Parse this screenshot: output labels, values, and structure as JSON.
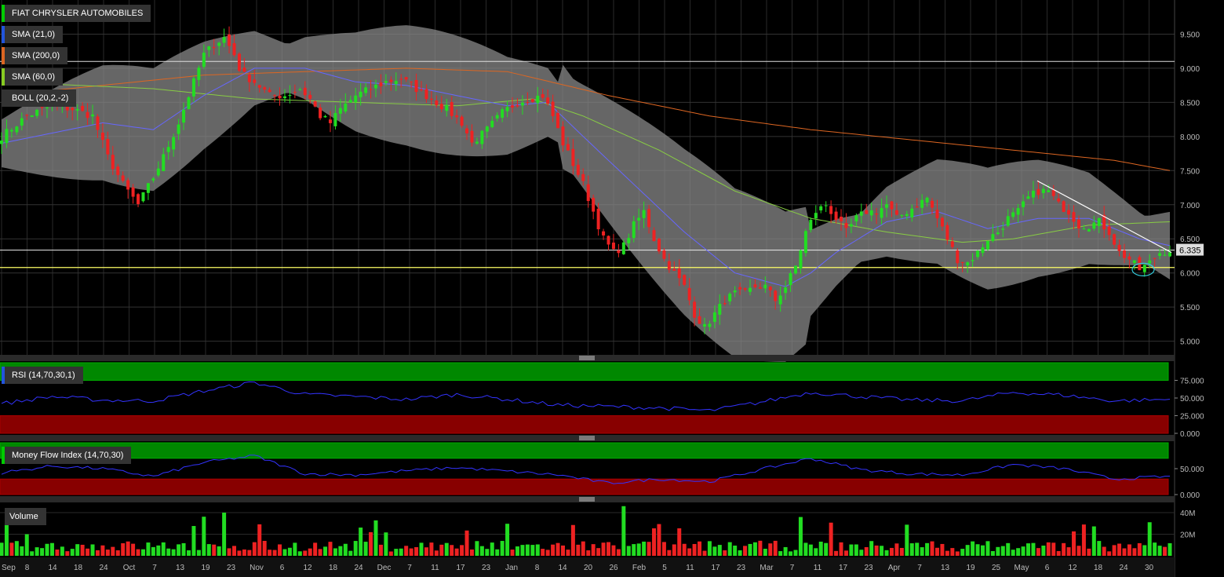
{
  "legends": {
    "instrument": {
      "label": "FIAT CHRYSLER AUTOMOBILES",
      "color": "#22cc22"
    },
    "sma21": {
      "label": "SMA (21,0)",
      "color": "#2255dd"
    },
    "sma200": {
      "label": "SMA (200,0)",
      "color": "#dd6622"
    },
    "sma60": {
      "label": "SMA (60,0)",
      "color": "#88cc22"
    },
    "boll": {
      "label": "BOLL (20,2,-2)",
      "color": "#333333"
    },
    "rsi": {
      "label": "RSI (14,70,30,1)",
      "color": "#2255dd"
    },
    "mfi": {
      "label": "Money Flow Index (14,70,30)",
      "color": "#22cc22"
    },
    "volume": {
      "label": "Volume",
      "color": "#444444"
    }
  },
  "last_price": "6.335",
  "colors": {
    "up": "#22dd22",
    "down": "#ee2222",
    "band": "#888888",
    "sma21": "#6666ff",
    "sma60": "#88cc44",
    "sma200": "#dd6622",
    "rsi_line": "#3333ff",
    "overbought": "#008800",
    "oversold": "#880000",
    "support": "#ffff66"
  },
  "chart_data": [
    {
      "type": "line",
      "title": "FIAT CHRYSLER AUTOMOBILES",
      "subtitle": "",
      "xlabel": "",
      "ylabel": "",
      "ylim": [
        4.8,
        10.0
      ],
      "yticks": [
        "5.000",
        "5.500",
        "6.000",
        "6.500",
        "7.000",
        "7.500",
        "8.000",
        "8.500",
        "9.000",
        "9.500"
      ],
      "x_labels": [
        "Sep",
        "8",
        "14",
        "18",
        "24",
        "Oct",
        "7",
        "13",
        "19",
        "23",
        "Nov",
        "6",
        "12",
        "18",
        "24",
        "Dec",
        "7",
        "11",
        "17",
        "23",
        "Jan",
        "8",
        "14",
        "20",
        "26",
        "Feb",
        "5",
        "11",
        "17",
        "23",
        "Mar",
        "7",
        "11",
        "17",
        "23",
        "Apr",
        "7",
        "13",
        "19",
        "25",
        "May",
        "6",
        "12",
        "18",
        "24",
        "30"
      ],
      "series": [
        {
          "name": "FIAT CHRYSLER AUTOMOBILES",
          "kind": "candlestick",
          "close_points": [
            [
              0,
              8.0
            ],
            [
              5,
              8.3
            ],
            [
              10,
              8.45
            ],
            [
              14,
              8.4
            ],
            [
              18,
              8.3
            ],
            [
              21,
              7.7
            ],
            [
              24,
              7.3
            ],
            [
              27,
              7.0
            ],
            [
              30,
              7.4
            ],
            [
              32,
              7.7
            ],
            [
              35,
              8.2
            ],
            [
              38,
              8.8
            ],
            [
              40,
              9.2
            ],
            [
              42,
              9.35
            ],
            [
              44,
              9.45
            ],
            [
              46,
              9.2
            ],
            [
              47,
              9.0
            ],
            [
              48,
              8.9
            ],
            [
              50,
              8.8
            ],
            [
              53,
              8.6
            ],
            [
              56,
              8.6
            ],
            [
              59,
              8.7
            ],
            [
              61,
              8.55
            ],
            [
              63,
              8.3
            ],
            [
              65,
              8.2
            ],
            [
              67,
              8.4
            ],
            [
              70,
              8.6
            ],
            [
              73,
              8.7
            ],
            [
              76,
              8.8
            ],
            [
              79,
              8.85
            ],
            [
              82,
              8.7
            ],
            [
              85,
              8.55
            ],
            [
              88,
              8.4
            ],
            [
              91,
              8.2
            ],
            [
              93,
              7.9
            ],
            [
              96,
              8.1
            ],
            [
              99,
              8.35
            ],
            [
              102,
              8.5
            ],
            [
              104,
              8.55
            ],
            [
              107,
              8.6
            ],
            [
              109,
              8.3
            ],
            [
              111,
              7.9
            ],
            [
              113,
              7.6
            ],
            [
              115,
              7.3
            ],
            [
              117,
              6.9
            ],
            [
              119,
              6.5
            ],
            [
              121,
              6.3
            ],
            [
              123,
              6.4
            ],
            [
              125,
              6.7
            ],
            [
              127,
              6.9
            ],
            [
              129,
              6.5
            ],
            [
              131,
              6.2
            ],
            [
              133,
              6.0
            ],
            [
              135,
              5.8
            ],
            [
              137,
              5.4
            ],
            [
              139,
              5.2
            ],
            [
              141,
              5.4
            ],
            [
              143,
              5.6
            ],
            [
              145,
              5.7
            ],
            [
              147,
              5.7
            ],
            [
              149,
              5.8
            ],
            [
              151,
              5.8
            ],
            [
              153,
              5.6
            ],
            [
              155,
              5.8
            ],
            [
              157,
              6.1
            ],
            [
              159,
              6.6
            ],
            [
              161,
              6.9
            ],
            [
              163,
              7.0
            ],
            [
              165,
              6.8
            ],
            [
              167,
              6.6
            ],
            [
              169,
              6.8
            ],
            [
              171,
              6.9
            ],
            [
              173,
              6.9
            ],
            [
              175,
              7.0
            ],
            [
              177,
              6.8
            ],
            [
              179,
              6.9
            ],
            [
              181,
              7.0
            ],
            [
              183,
              7.1
            ],
            [
              185,
              6.8
            ],
            [
              187,
              6.5
            ],
            [
              189,
              6.2
            ],
            [
              191,
              6.15
            ],
            [
              193,
              6.3
            ],
            [
              195,
              6.5
            ],
            [
              197,
              6.6
            ],
            [
              199,
              6.8
            ],
            [
              201,
              6.9
            ],
            [
              203,
              7.1
            ],
            [
              205,
              7.2
            ],
            [
              207,
              7.2
            ],
            [
              209,
              7.0
            ],
            [
              211,
              6.9
            ],
            [
              213,
              6.7
            ],
            [
              215,
              6.7
            ],
            [
              217,
              6.75
            ],
            [
              219,
              6.6
            ],
            [
              221,
              6.3
            ],
            [
              223,
              6.2
            ],
            [
              225,
              6.05
            ],
            [
              227,
              6.15
            ],
            [
              229,
              6.3
            ],
            [
              231,
              6.335
            ]
          ]
        },
        {
          "name": "SMA (21,0)",
          "points": [
            [
              0,
              7.9
            ],
            [
              20,
              8.2
            ],
            [
              30,
              8.1
            ],
            [
              40,
              8.6
            ],
            [
              50,
              9.0
            ],
            [
              60,
              9.0
            ],
            [
              70,
              8.8
            ],
            [
              80,
              8.75
            ],
            [
              90,
              8.6
            ],
            [
              100,
              8.45
            ],
            [
              108,
              8.5
            ],
            [
              115,
              8.0
            ],
            [
              125,
              7.3
            ],
            [
              135,
              6.6
            ],
            [
              145,
              6.0
            ],
            [
              155,
              5.8
            ],
            [
              160,
              6.0
            ],
            [
              165,
              6.3
            ],
            [
              175,
              6.75
            ],
            [
              185,
              6.9
            ],
            [
              195,
              6.65
            ],
            [
              205,
              6.8
            ],
            [
              215,
              6.8
            ],
            [
              225,
              6.5
            ],
            [
              231,
              6.4
            ]
          ]
        },
        {
          "name": "SMA (60,0)",
          "points": [
            [
              0,
              8.8
            ],
            [
              30,
              8.7
            ],
            [
              50,
              8.55
            ],
            [
              70,
              8.5
            ],
            [
              90,
              8.45
            ],
            [
              105,
              8.55
            ],
            [
              115,
              8.3
            ],
            [
              130,
              7.8
            ],
            [
              145,
              7.2
            ],
            [
              160,
              6.8
            ],
            [
              175,
              6.6
            ],
            [
              190,
              6.45
            ],
            [
              200,
              6.5
            ],
            [
              215,
              6.7
            ],
            [
              231,
              6.75
            ]
          ]
        },
        {
          "name": "SMA (200,0)",
          "points": [
            [
              0,
              8.6
            ],
            [
              40,
              8.9
            ],
            [
              80,
              9.0
            ],
            [
              100,
              8.95
            ],
            [
              120,
              8.6
            ],
            [
              140,
              8.3
            ],
            [
              160,
              8.1
            ],
            [
              180,
              7.95
            ],
            [
              200,
              7.8
            ],
            [
              220,
              7.65
            ],
            [
              231,
              7.5
            ]
          ]
        }
      ]
    },
    {
      "type": "line",
      "title": "",
      "ylabel": "",
      "ylim": [
        0,
        100
      ],
      "yticks": [
        "0.000",
        "25.000",
        "50.000",
        "75.000"
      ],
      "series": [
        {
          "name": "RSI (14,70,30,1)",
          "points": [
            [
              0,
              42
            ],
            [
              10,
              52
            ],
            [
              20,
              47
            ],
            [
              30,
              46
            ],
            [
              40,
              60
            ],
            [
              50,
              72
            ],
            [
              60,
              55
            ],
            [
              70,
              52
            ],
            [
              80,
              48
            ],
            [
              90,
              55
            ],
            [
              100,
              48
            ],
            [
              110,
              40
            ],
            [
              120,
              38
            ],
            [
              130,
              36
            ],
            [
              140,
              32
            ],
            [
              150,
              44
            ],
            [
              160,
              58
            ],
            [
              170,
              52
            ],
            [
              180,
              47
            ],
            [
              190,
              46
            ],
            [
              200,
              58
            ],
            [
              210,
              54
            ],
            [
              220,
              46
            ],
            [
              231,
              48
            ]
          ]
        }
      ]
    },
    {
      "type": "line",
      "title": "",
      "ylabel": "",
      "ylim": [
        0,
        100
      ],
      "yticks": [
        "0.000",
        "50.000"
      ],
      "series": [
        {
          "name": "Money Flow Index (14,70,30)",
          "points": [
            [
              0,
              42
            ],
            [
              10,
              55
            ],
            [
              20,
              50
            ],
            [
              30,
              35
            ],
            [
              40,
              62
            ],
            [
              50,
              75
            ],
            [
              60,
              40
            ],
            [
              70,
              38
            ],
            [
              80,
              46
            ],
            [
              90,
              52
            ],
            [
              100,
              45
            ],
            [
              110,
              38
            ],
            [
              120,
              22
            ],
            [
              130,
              30
            ],
            [
              140,
              25
            ],
            [
              150,
              48
            ],
            [
              160,
              70
            ],
            [
              170,
              48
            ],
            [
              180,
              40
            ],
            [
              190,
              38
            ],
            [
              200,
              58
            ],
            [
              210,
              50
            ],
            [
              220,
              30
            ],
            [
              231,
              35
            ]
          ]
        }
      ]
    },
    {
      "type": "bar",
      "title": "",
      "ylabel": "",
      "ylim": [
        0,
        48
      ],
      "yticks": [
        "20M",
        "40M"
      ],
      "series": [
        {
          "name": "Volume"
        }
      ]
    }
  ]
}
